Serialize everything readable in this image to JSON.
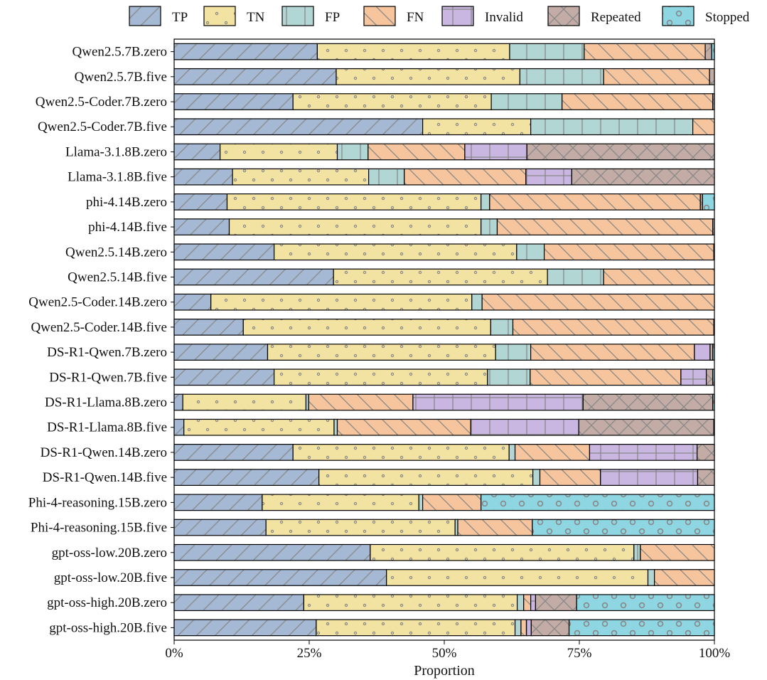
{
  "chart_data": {
    "type": "bar",
    "orientation": "horizontal",
    "stacked": true,
    "title": "",
    "xlabel": "Proportion",
    "ylabel": "",
    "xlim": [
      0,
      100
    ],
    "x_ticks": [
      0,
      25,
      50,
      75,
      100
    ],
    "x_tick_labels": [
      "0%",
      "25%",
      "50%",
      "75%",
      "100%"
    ],
    "legend_position": "top",
    "categories": [
      "Qwen2.5.7B.zero",
      "Qwen2.5.7B.five",
      "Qwen2.5-Coder.7B.zero",
      "Qwen2.5-Coder.7B.five",
      "Llama-3.1.8B.zero",
      "Llama-3.1.8B.five",
      "phi-4.14B.zero",
      "phi-4.14B.five",
      "Qwen2.5.14B.zero",
      "Qwen2.5.14B.five",
      "Qwen2.5-Coder.14B.zero",
      "Qwen2.5-Coder.14B.five",
      "DS-R1-Qwen.7B.zero",
      "DS-R1-Qwen.7B.five",
      "DS-R1-Llama.8B.zero",
      "DS-R1-Llama.8B.five",
      "DS-R1-Qwen.14B.zero",
      "DS-R1-Qwen.14B.five",
      "Phi-4-reasoning.15B.zero",
      "Phi-4-reasoning.15B.five",
      "gpt-oss-low.20B.zero",
      "gpt-oss-low.20B.five",
      "gpt-oss-high.20B.zero",
      "gpt-oss-high.20B.five"
    ],
    "series": [
      {
        "name": "TP",
        "color": "#a5b8d4",
        "pattern": "slash",
        "values": [
          26.5,
          30.0,
          22.0,
          46.0,
          8.5,
          10.8,
          9.8,
          10.2,
          18.5,
          29.5,
          6.8,
          12.8,
          17.3,
          18.5,
          1.6,
          1.8,
          22.0,
          26.8,
          16.3,
          17.0,
          36.3,
          39.3,
          24.0,
          26.3
        ]
      },
      {
        "name": "TN",
        "color": "#f3e3a2",
        "pattern": "dots",
        "values": [
          35.6,
          34.0,
          36.7,
          20.0,
          21.7,
          25.2,
          47.0,
          46.6,
          44.9,
          39.6,
          48.3,
          45.8,
          42.2,
          39.5,
          22.8,
          27.8,
          40.0,
          39.6,
          29.0,
          35.0,
          48.8,
          48.4,
          39.5,
          36.8
        ]
      },
      {
        "name": "FP",
        "color": "#b2d6d3",
        "pattern": "vertical",
        "values": [
          13.8,
          15.5,
          13.1,
          30.0,
          5.7,
          6.6,
          1.6,
          3.0,
          5.1,
          10.4,
          1.9,
          4.1,
          6.5,
          7.9,
          0.5,
          0.6,
          1.1,
          1.3,
          0.7,
          0.5,
          1.2,
          1.2,
          1.2,
          1.1
        ]
      },
      {
        "name": "FN",
        "color": "#f6c59d",
        "pattern": "backslash",
        "values": [
          22.4,
          19.6,
          27.9,
          4.0,
          17.9,
          22.5,
          39.0,
          39.9,
          31.4,
          20.5,
          43.0,
          37.2,
          30.3,
          27.9,
          19.3,
          24.7,
          13.8,
          11.2,
          10.8,
          13.8,
          13.7,
          11.1,
          1.3,
          1.0
        ]
      },
      {
        "name": "Invalid",
        "color": "#c9b6e1",
        "pattern": "grid",
        "values": [
          0.0,
          0.0,
          0.0,
          0.0,
          11.5,
          8.5,
          0.0,
          0.0,
          0.0,
          0.0,
          0.0,
          0.0,
          2.9,
          4.7,
          31.5,
          20.0,
          19.9,
          18.0,
          0.0,
          0.0,
          0.0,
          0.0,
          0.9,
          0.9
        ]
      },
      {
        "name": "Repeated",
        "color": "#c3aca6",
        "pattern": "cross",
        "values": [
          1.2,
          0.9,
          0.3,
          0.0,
          34.7,
          26.4,
          0.4,
          0.3,
          0.1,
          0.0,
          0.0,
          0.1,
          0.5,
          1.2,
          24.0,
          25.0,
          3.2,
          3.1,
          0.0,
          0.0,
          0.0,
          0.0,
          7.6,
          7.0
        ]
      },
      {
        "name": "Stopped",
        "color": "#8fd6e3",
        "pattern": "circles",
        "values": [
          0.5,
          0.0,
          0.0,
          0.0,
          0.0,
          0.0,
          2.2,
          0.0,
          0.0,
          0.0,
          0.0,
          0.0,
          0.3,
          0.3,
          0.3,
          0.1,
          0.0,
          0.0,
          43.2,
          33.7,
          0.0,
          0.0,
          25.5,
          26.9
        ]
      }
    ]
  }
}
